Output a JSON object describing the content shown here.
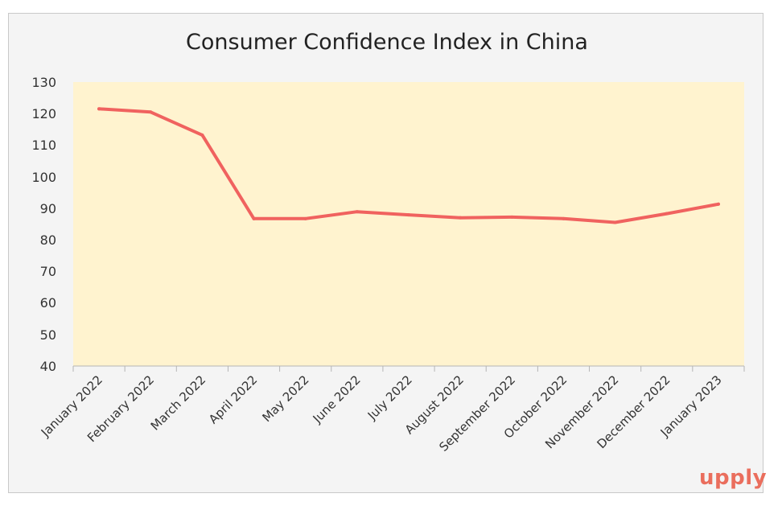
{
  "chart_data": {
    "type": "line",
    "title": "Consumer Confidence Index in China",
    "xlabel": "",
    "ylabel": "",
    "categories": [
      "January 2022",
      "February 2022",
      "March 2022",
      "April 2022",
      "May 2022",
      "June 2022",
      "July 2022",
      "August 2022",
      "September 2022",
      "October 2022",
      "November 2022",
      "December 2022",
      "January 2023"
    ],
    "series": [
      {
        "values": [
          121.5,
          120.5,
          113.2,
          86.7,
          86.7,
          88.9,
          87.9,
          87.0,
          87.2,
          86.7,
          85.5,
          88.3,
          91.3
        ]
      }
    ],
    "ylim": [
      40,
      130
    ],
    "yticks": [
      "130",
      "120",
      "110",
      "100",
      "90",
      "80",
      "70",
      "60",
      "50",
      "40"
    ],
    "grid": false,
    "colors": {
      "line": "#f0625f",
      "plot_background": "#fff3cf",
      "frame_background": "#f4f4f4"
    }
  },
  "brand": {
    "logo_text": "upply"
  }
}
